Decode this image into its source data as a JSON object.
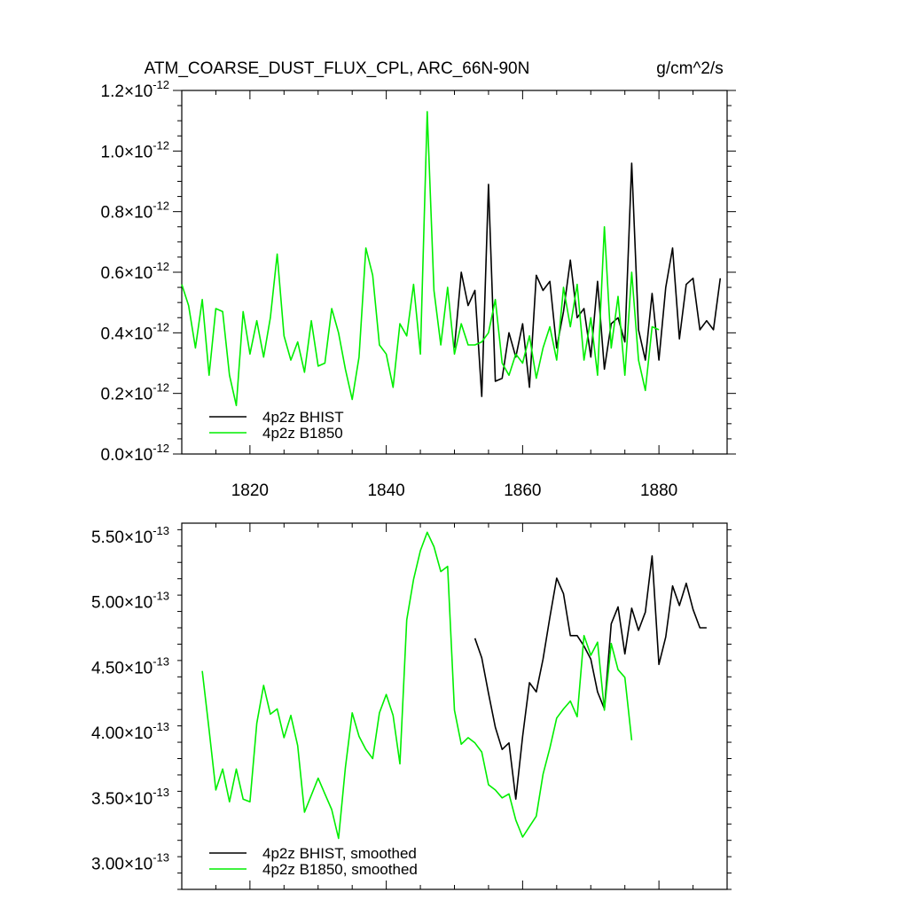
{
  "colors": {
    "bhist": "#000000",
    "b1850": "#00ee00"
  },
  "chart_data": [
    {
      "type": "line",
      "title": "ATM_COARSE_DUST_FLUX_CPL, ARC_66N-90N",
      "units": "g/cm^2/s",
      "xlim": [
        1810,
        1890
      ],
      "ylim": [
        0.0,
        1.2
      ],
      "y_scale_label": "-12",
      "yticks": [
        "0.0",
        "0.2",
        "0.4",
        "0.6",
        "0.8",
        "1.0",
        "1.2"
      ],
      "xticks": [
        "1820",
        "1840",
        "1860",
        "1880"
      ],
      "grid": false,
      "legend": "bottom-left",
      "series": [
        {
          "name": "4p2z BHIST",
          "color_key": "bhist",
          "x": [
            1850,
            1851,
            1852,
            1853,
            1854,
            1855,
            1856,
            1857,
            1858,
            1859,
            1860,
            1861,
            1862,
            1863,
            1864,
            1865,
            1866,
            1867,
            1868,
            1869,
            1870,
            1871,
            1872,
            1873,
            1874,
            1875,
            1876,
            1877,
            1878,
            1879,
            1880,
            1881,
            1882,
            1883,
            1884,
            1885,
            1886,
            1887,
            1888,
            1889
          ],
          "y": [
            0.35,
            0.6,
            0.49,
            0.54,
            0.19,
            0.89,
            0.24,
            0.25,
            0.4,
            0.32,
            0.43,
            0.22,
            0.59,
            0.54,
            0.57,
            0.35,
            0.47,
            0.64,
            0.45,
            0.48,
            0.32,
            0.57,
            0.28,
            0.43,
            0.45,
            0.37,
            0.96,
            0.41,
            0.31,
            0.53,
            0.31,
            0.55,
            0.68,
            0.38,
            0.56,
            0.58,
            0.41,
            0.44,
            0.41,
            0.58
          ]
        },
        {
          "name": "4p2z B1850",
          "color_key": "b1850",
          "x": [
            1810,
            1811,
            1812,
            1813,
            1814,
            1815,
            1816,
            1817,
            1818,
            1819,
            1820,
            1821,
            1822,
            1823,
            1824,
            1825,
            1826,
            1827,
            1828,
            1829,
            1830,
            1831,
            1832,
            1833,
            1834,
            1835,
            1836,
            1837,
            1838,
            1839,
            1840,
            1841,
            1842,
            1843,
            1844,
            1845,
            1846,
            1847,
            1848,
            1849,
            1850,
            1851,
            1852,
            1853,
            1854,
            1855,
            1856,
            1857,
            1858,
            1859,
            1860,
            1861,
            1862,
            1863,
            1864,
            1865,
            1866,
            1867,
            1868,
            1869,
            1870,
            1871,
            1872,
            1873,
            1874,
            1875,
            1876,
            1877,
            1878,
            1879,
            1880
          ],
          "y": [
            0.56,
            0.49,
            0.35,
            0.51,
            0.26,
            0.48,
            0.47,
            0.26,
            0.16,
            0.47,
            0.33,
            0.44,
            0.32,
            0.45,
            0.66,
            0.39,
            0.31,
            0.37,
            0.27,
            0.44,
            0.29,
            0.3,
            0.48,
            0.4,
            0.28,
            0.18,
            0.32,
            0.68,
            0.59,
            0.36,
            0.33,
            0.22,
            0.43,
            0.39,
            0.56,
            0.33,
            1.13,
            0.54,
            0.36,
            0.55,
            0.33,
            0.43,
            0.36,
            0.36,
            0.37,
            0.4,
            0.51,
            0.3,
            0.26,
            0.33,
            0.3,
            0.39,
            0.25,
            0.35,
            0.42,
            0.31,
            0.55,
            0.42,
            0.56,
            0.31,
            0.45,
            0.26,
            0.75,
            0.35,
            0.52,
            0.26,
            0.6,
            0.31,
            0.21,
            0.42,
            0.41
          ]
        }
      ]
    },
    {
      "type": "line",
      "xlim": [
        1810,
        1890
      ],
      "ylim": [
        2.8,
        5.6
      ],
      "y_scale_label": "-13",
      "yticks": [
        "3.00",
        "3.50",
        "4.00",
        "4.50",
        "5.00",
        "5.50"
      ],
      "grid": false,
      "legend": "bottom-left",
      "series": [
        {
          "name": "4p2z BHIST, smoothed",
          "color_key": "bhist",
          "x": [
            1853,
            1854,
            1855,
            1856,
            1857,
            1858,
            1859,
            1860,
            1861,
            1862,
            1863,
            1864,
            1865,
            1866,
            1867,
            1868,
            1869,
            1870,
            1871,
            1872,
            1873,
            1874,
            1875,
            1876,
            1877,
            1878,
            1879,
            1880,
            1881,
            1882,
            1883,
            1884,
            1885,
            1886,
            1887
          ],
          "y": [
            4.72,
            4.57,
            4.3,
            4.04,
            3.87,
            3.92,
            3.49,
            3.97,
            4.38,
            4.31,
            4.56,
            4.88,
            5.18,
            5.06,
            4.74,
            4.74,
            4.66,
            4.56,
            4.31,
            4.18,
            4.83,
            4.96,
            4.6,
            4.95,
            4.78,
            4.92,
            5.35,
            4.52,
            4.73,
            5.12,
            4.97,
            5.14,
            4.94,
            4.8,
            4.8
          ]
        },
        {
          "name": "4p2z B1850, smoothed",
          "color_key": "b1850",
          "x": [
            1813,
            1814,
            1815,
            1816,
            1817,
            1818,
            1819,
            1820,
            1821,
            1822,
            1823,
            1824,
            1825,
            1826,
            1827,
            1828,
            1829,
            1830,
            1831,
            1832,
            1833,
            1834,
            1835,
            1836,
            1837,
            1838,
            1839,
            1840,
            1841,
            1842,
            1843,
            1844,
            1845,
            1846,
            1847,
            1848,
            1849,
            1850,
            1851,
            1852,
            1853,
            1854,
            1855,
            1856,
            1857,
            1858,
            1859,
            1860,
            1861,
            1862,
            1863,
            1864,
            1865,
            1866,
            1867,
            1868,
            1869,
            1870,
            1871,
            1872,
            1873,
            1874,
            1875,
            1876
          ],
          "y": [
            4.47,
            4.02,
            3.56,
            3.72,
            3.47,
            3.72,
            3.49,
            3.47,
            4.07,
            4.36,
            4.14,
            4.18,
            3.96,
            4.13,
            3.9,
            3.39,
            3.52,
            3.65,
            3.53,
            3.41,
            3.19,
            3.73,
            4.15,
            3.97,
            3.87,
            3.8,
            4.15,
            4.29,
            4.13,
            3.76,
            4.86,
            5.17,
            5.39,
            5.53,
            5.42,
            5.23,
            5.27,
            4.17,
            3.91,
            3.96,
            3.92,
            3.85,
            3.6,
            3.56,
            3.5,
            3.53,
            3.33,
            3.2,
            3.28,
            3.36,
            3.68,
            3.88,
            4.11,
            4.18,
            4.24,
            4.12,
            4.74,
            4.59,
            4.69,
            4.17,
            4.68,
            4.48,
            4.42,
            3.94
          ]
        }
      ]
    }
  ]
}
